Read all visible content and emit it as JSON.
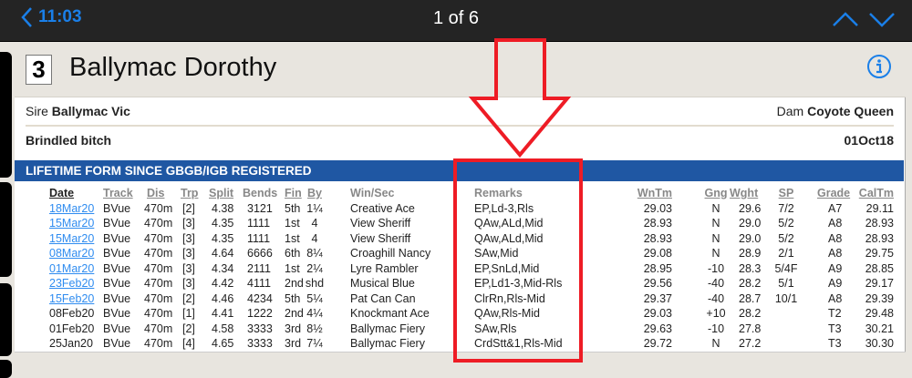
{
  "topbar": {
    "time": "11:03",
    "counter": "1 of 6"
  },
  "dog": {
    "trap": "3",
    "name": "Ballymac Dorothy",
    "sire_label": "Sire",
    "sire": "Ballymac Vic",
    "dam_label": "Dam",
    "dam": "Coyote Queen",
    "description": "Brindled bitch",
    "dob": "01Oct18"
  },
  "section_title": "LIFETIME FORM SINCE GBGB/IGB REGISTERED",
  "colors": {
    "accent": "#1a7fe8",
    "band": "#1f57a3",
    "annotation": "#ee1c25",
    "link": "#2f8cf0"
  },
  "columns": [
    "Date",
    "Track",
    "Dis",
    "Trp",
    "Split",
    "Bends",
    "Fin",
    "By",
    "Win/Sec",
    "Remarks",
    "WnTm",
    "Gng",
    "Wght",
    "SP",
    "Grade",
    "CalTm"
  ],
  "rows": [
    [
      "18Mar20",
      "BVue",
      "470m",
      "[2]",
      "4.38",
      "3121",
      "5th",
      "1¼",
      "Creative Ace",
      "EP,Ld-3,Rls",
      "29.03",
      "N",
      "29.6",
      "7/2",
      "A7",
      "29.11"
    ],
    [
      "15Mar20",
      "BVue",
      "470m",
      "[3]",
      "4.35",
      "1111",
      "1st",
      "4",
      "View Sheriff",
      "QAw,ALd,Mid",
      "28.93",
      "N",
      "29.0",
      "5/2",
      "A8",
      "28.93"
    ],
    [
      "15Mar20",
      "BVue",
      "470m",
      "[3]",
      "4.35",
      "1111",
      "1st",
      "4",
      "View Sheriff",
      "QAw,ALd,Mid",
      "28.93",
      "N",
      "29.0",
      "5/2",
      "A8",
      "28.93"
    ],
    [
      "08Mar20",
      "BVue",
      "470m",
      "[3]",
      "4.64",
      "6666",
      "6th",
      "8¼",
      "Croaghill Nancy",
      "SAw,Mid",
      "29.08",
      "N",
      "28.9",
      "2/1",
      "A8",
      "29.75"
    ],
    [
      "01Mar20",
      "BVue",
      "470m",
      "[3]",
      "4.34",
      "2111",
      "1st",
      "2¼",
      "Lyre Rambler",
      "EP,SnLd,Mid",
      "28.95",
      "-10",
      "28.3",
      "5/4F",
      "A9",
      "28.85"
    ],
    [
      "23Feb20",
      "BVue",
      "470m",
      "[3]",
      "4.42",
      "4111",
      "2nd",
      "shd",
      "Musical Blue",
      "EP,Ld1-3,Mid-Rls",
      "29.56",
      "-40",
      "28.2",
      "5/1",
      "A9",
      "29.17"
    ],
    [
      "15Feb20",
      "BVue",
      "470m",
      "[2]",
      "4.46",
      "4234",
      "5th",
      "5¼",
      "Pat Can Can",
      "ClrRn,Rls-Mid",
      "29.37",
      "-40",
      "28.7",
      "10/1",
      "A8",
      "29.39"
    ],
    [
      "08Feb20",
      "BVue",
      "470m",
      "[1]",
      "4.41",
      "1222",
      "2nd",
      "4¼",
      "Knockmant Ace",
      "QAw,Rls-Mid",
      "29.03",
      "+10",
      "28.2",
      "",
      "T2",
      "29.48"
    ],
    [
      "01Feb20",
      "BVue",
      "470m",
      "[2]",
      "4.58",
      "3333",
      "3rd",
      "8½",
      "Ballymac Fiery",
      "SAw,Rls",
      "29.63",
      "-10",
      "27.8",
      "",
      "T3",
      "30.21"
    ],
    [
      "25Jan20",
      "BVue",
      "470m",
      "[4]",
      "4.65",
      "3333",
      "3rd",
      "7¼",
      "Ballymac Fiery",
      "CrdStt&1,Rls-Mid",
      "29.72",
      "N",
      "27.2",
      "",
      "T3",
      "30.30"
    ]
  ],
  "linked_rows": 7
}
